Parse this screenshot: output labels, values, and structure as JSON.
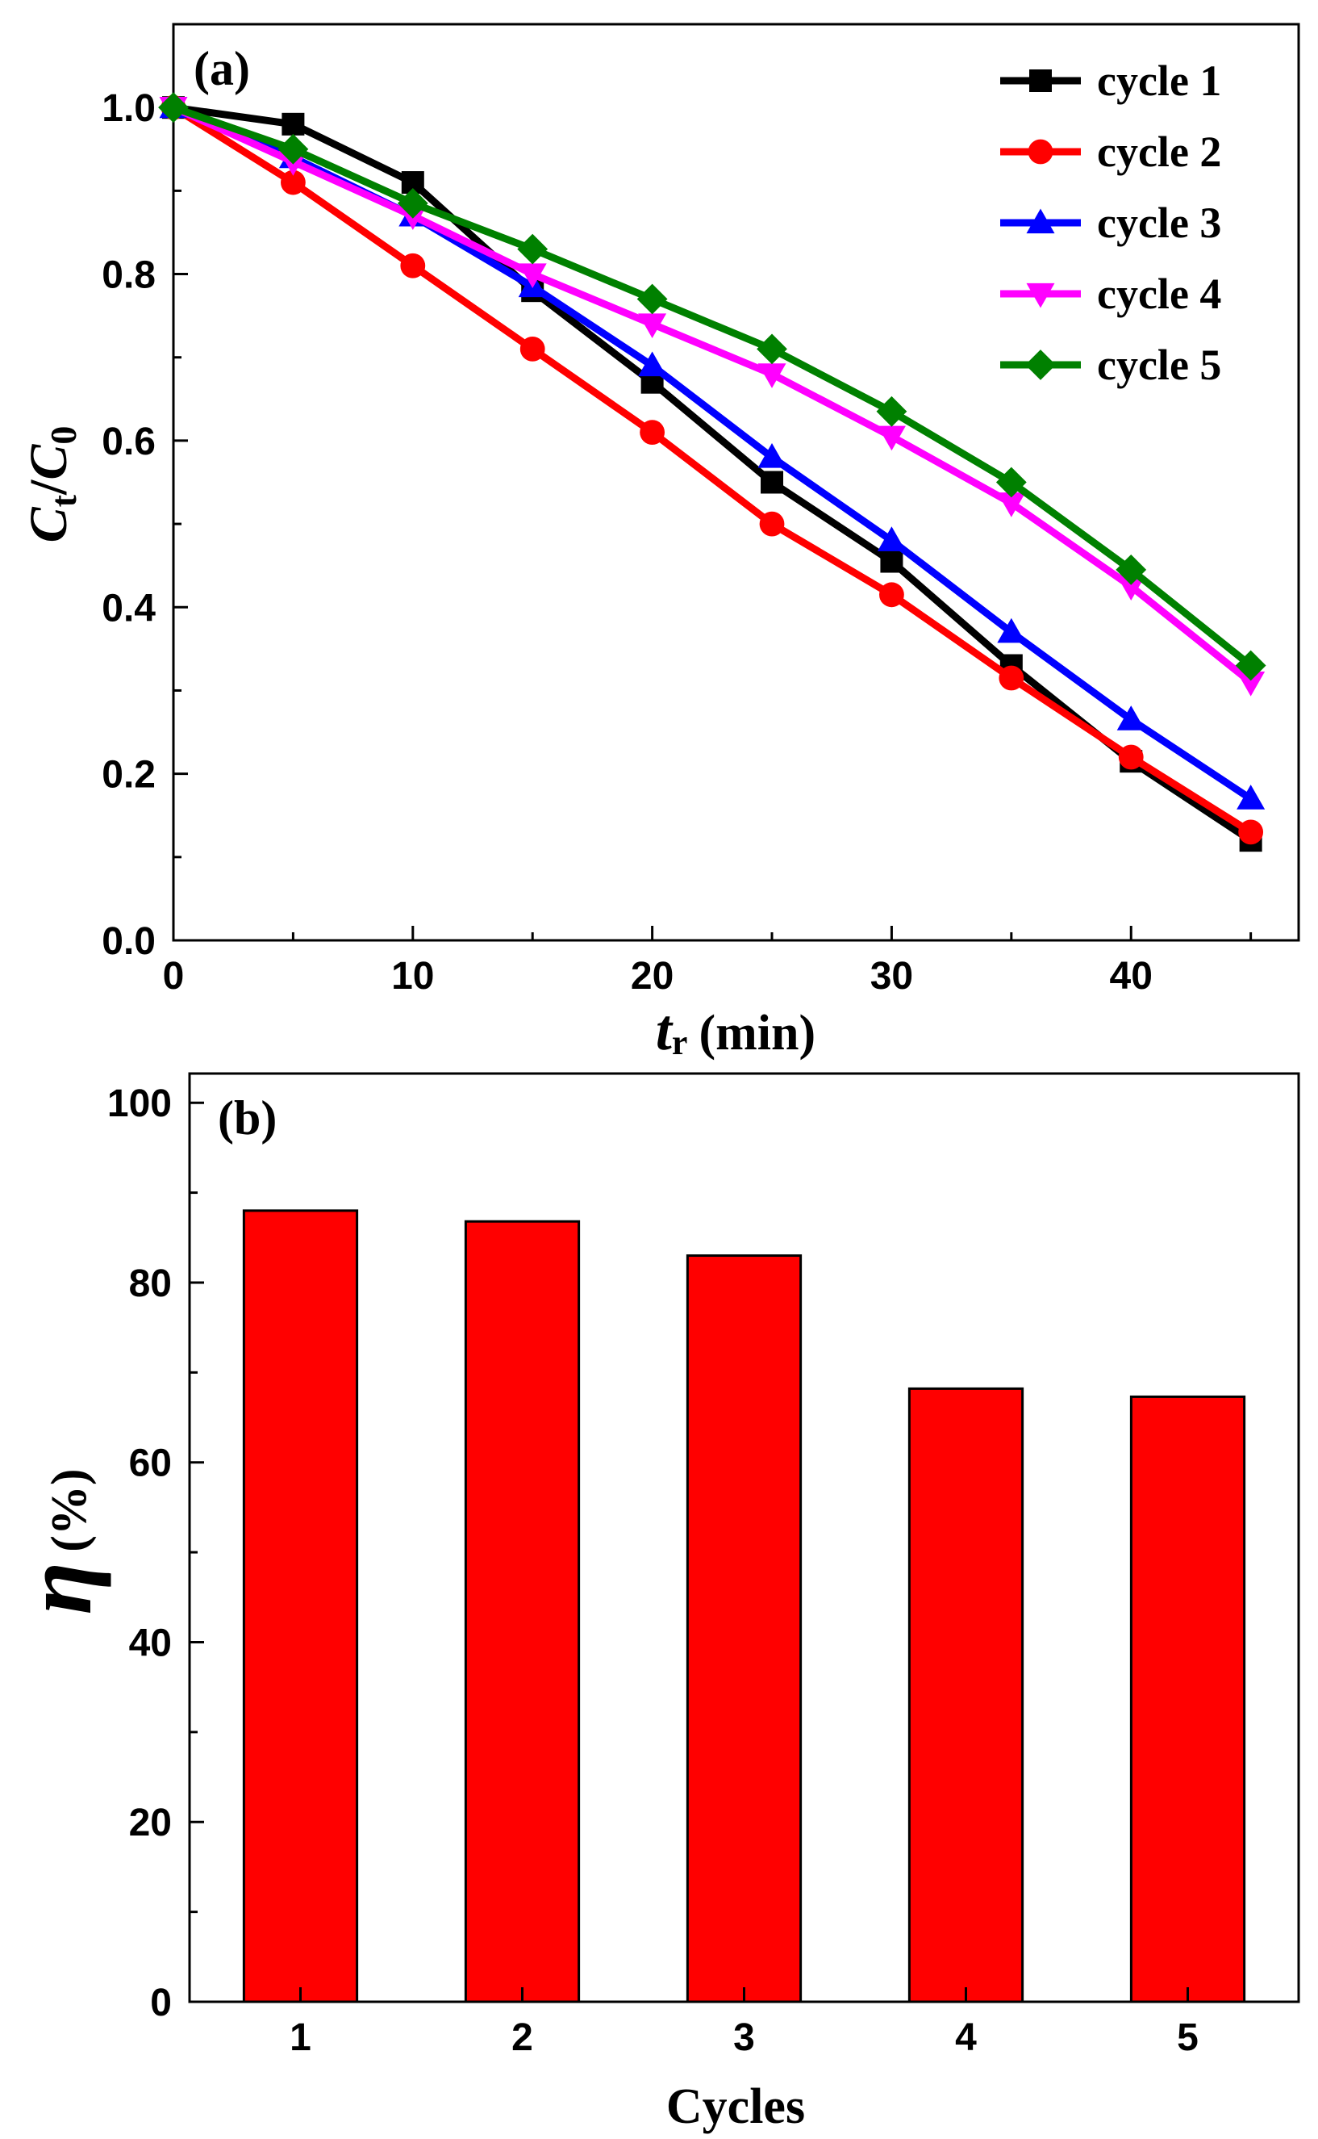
{
  "chart_data": [
    {
      "type": "line",
      "panel_label": "(a)",
      "xlabel": {
        "main": "t",
        "sub": "r",
        "unit": "(min)"
      },
      "ylabel": {
        "numer_main": "C",
        "numer_sub": "t",
        "slash": "/",
        "denom_main": "C",
        "denom_sub": "0"
      },
      "xlim": [
        0,
        47
      ],
      "ylim": [
        0,
        1.1
      ],
      "xticks": [
        0,
        10,
        20,
        30,
        40
      ],
      "xtick_labels": [
        "0",
        "10",
        "20",
        "30",
        "40"
      ],
      "yticks": [
        0.0,
        0.2,
        0.4,
        0.6,
        0.8,
        1.0
      ],
      "ytick_labels": [
        "0.0",
        "0.2",
        "0.4",
        "0.6",
        "0.8",
        "1.0"
      ],
      "legend_position": "top-right",
      "x": [
        0,
        5,
        10,
        15,
        20,
        25,
        30,
        35,
        40,
        45
      ],
      "series": [
        {
          "name": "cycle 1",
          "color": "#000000",
          "marker": "square",
          "values": [
            1.0,
            0.98,
            0.91,
            0.78,
            0.67,
            0.55,
            0.455,
            0.33,
            0.215,
            0.12
          ]
        },
        {
          "name": "cycle 2",
          "color": "#ff0000",
          "marker": "circle",
          "values": [
            1.0,
            0.91,
            0.81,
            0.71,
            0.61,
            0.5,
            0.415,
            0.315,
            0.22,
            0.13
          ]
        },
        {
          "name": "cycle 3",
          "color": "#0000ff",
          "marker": "triangle-up",
          "values": [
            1.0,
            0.94,
            0.87,
            0.785,
            0.69,
            0.58,
            0.48,
            0.37,
            0.265,
            0.17
          ]
        },
        {
          "name": "cycle 4",
          "color": "#ff00ff",
          "marker": "triangle-down",
          "values": [
            1.0,
            0.935,
            0.87,
            0.8,
            0.74,
            0.68,
            0.605,
            0.525,
            0.425,
            0.31
          ]
        },
        {
          "name": "cycle 5",
          "color": "#008000",
          "marker": "diamond",
          "values": [
            1.0,
            0.95,
            0.885,
            0.83,
            0.77,
            0.71,
            0.635,
            0.55,
            0.445,
            0.33
          ]
        }
      ]
    },
    {
      "type": "bar",
      "panel_label": "(b)",
      "xlabel": "Cycles",
      "ylabel": {
        "symbol": "η",
        "unit": "(%)"
      },
      "categories": [
        "1",
        "2",
        "3",
        "4",
        "5"
      ],
      "values": [
        88,
        86.8,
        83,
        68.2,
        67.3
      ],
      "ylim": [
        0,
        100
      ],
      "yticks": [
        0,
        20,
        40,
        60,
        80,
        100
      ],
      "ytick_labels": [
        "0",
        "20",
        "40",
        "60",
        "80",
        "100"
      ],
      "bar_color": "#ff0000"
    }
  ]
}
